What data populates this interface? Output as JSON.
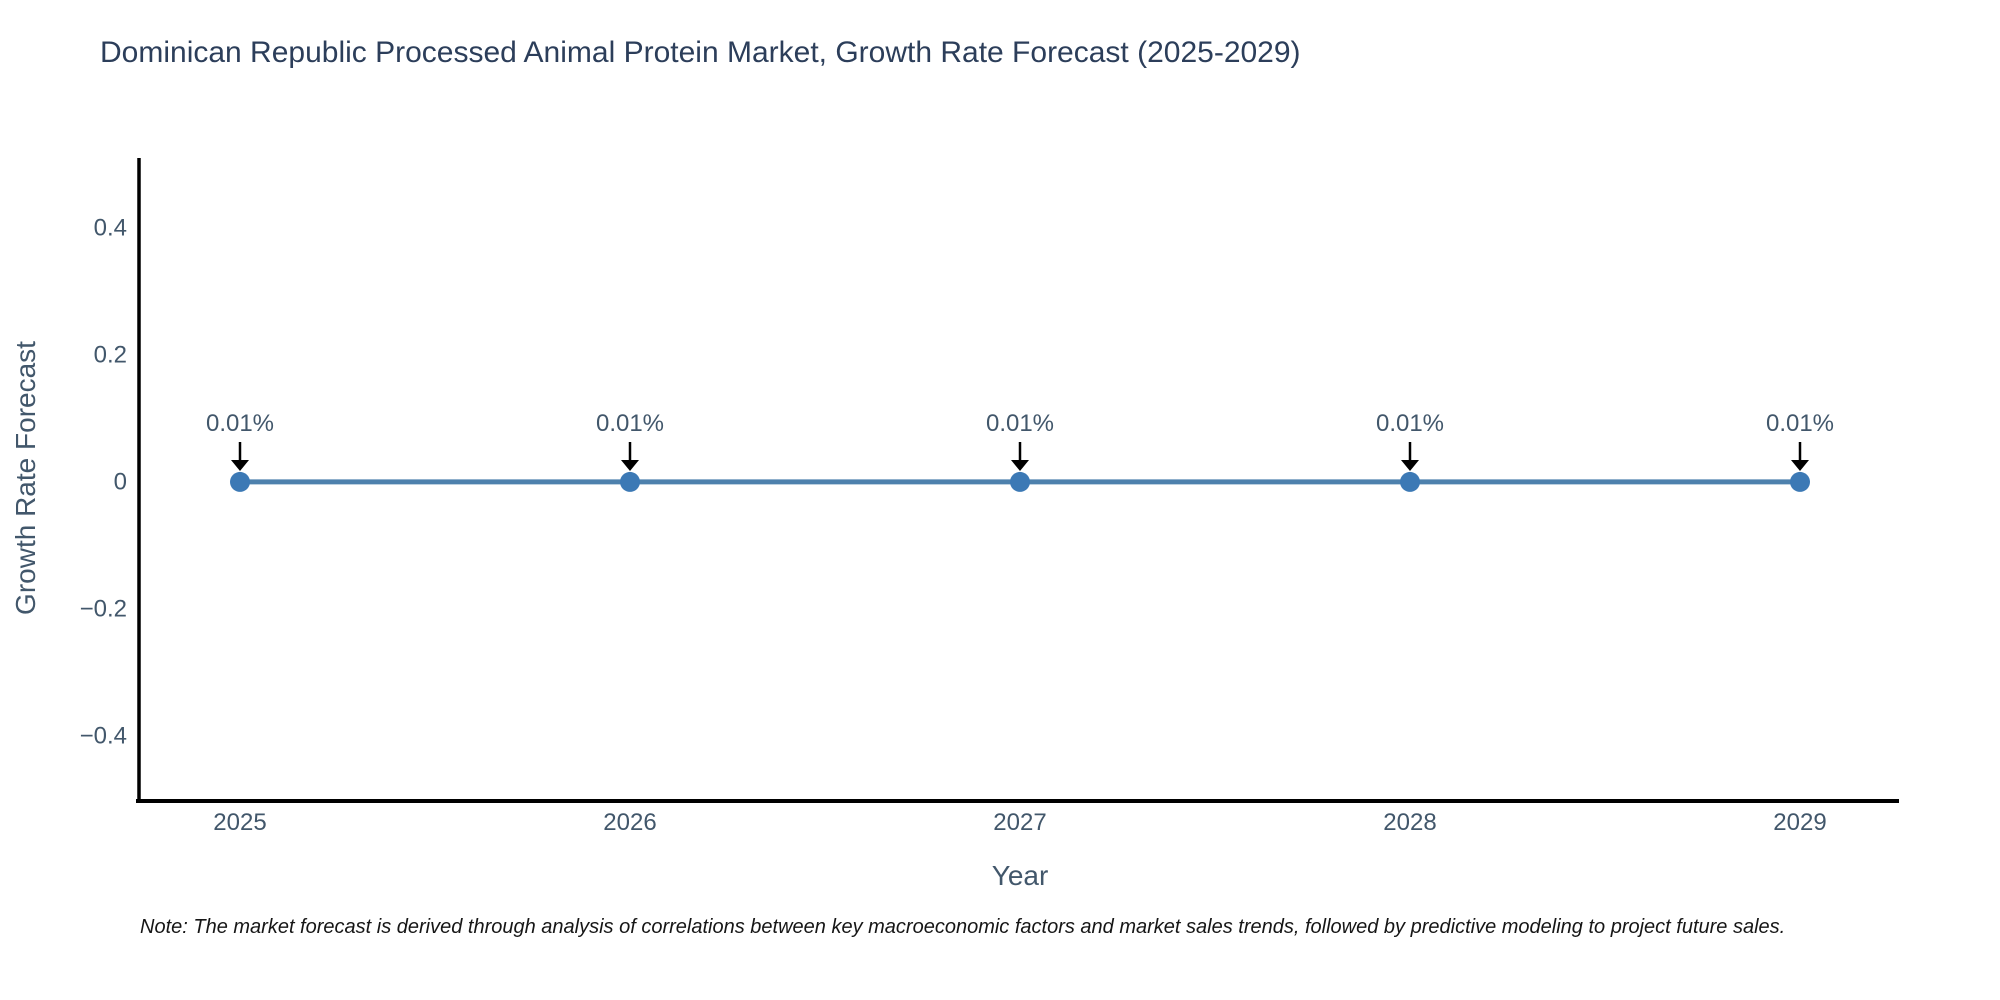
{
  "note": "Note: The market forecast is derived through analysis of correlations between key macroeconomic factors and market sales trends, followed by predictive modeling to project future sales.",
  "chart_data": {
    "type": "line",
    "title": "Dominican Republic Processed Animal Protein Market, Growth Rate Forecast (2025-2029)",
    "xlabel": "Year",
    "ylabel": "Growth Rate Forecast",
    "categories": [
      "2025",
      "2026",
      "2027",
      "2028",
      "2029"
    ],
    "series": [
      {
        "name": "Growth Rate Forecast",
        "values_percent": [
          0.01,
          0.01,
          0.01,
          0.01,
          0.01
        ]
      }
    ],
    "point_labels": [
      "0.01%",
      "0.01%",
      "0.01%",
      "0.01%",
      "0.01%"
    ],
    "ytick_values": [
      0.4,
      0.2,
      0,
      -0.2,
      -0.4
    ],
    "ytick_labels": [
      "0.4",
      "0.2",
      "0",
      "−0.2",
      "−0.4"
    ],
    "ylim": [
      -0.51,
      0.51
    ],
    "grid": false,
    "legend": false,
    "annotation_arrows": true,
    "colors": {
      "line": "#4e81ad",
      "marker": "#3c79b5",
      "axis": "#000000",
      "title_text": "#2c3e5a",
      "axis_text": "#42576b",
      "annotation_text": "#42576b",
      "arrow": "#000000",
      "background": "#ffffff"
    }
  }
}
